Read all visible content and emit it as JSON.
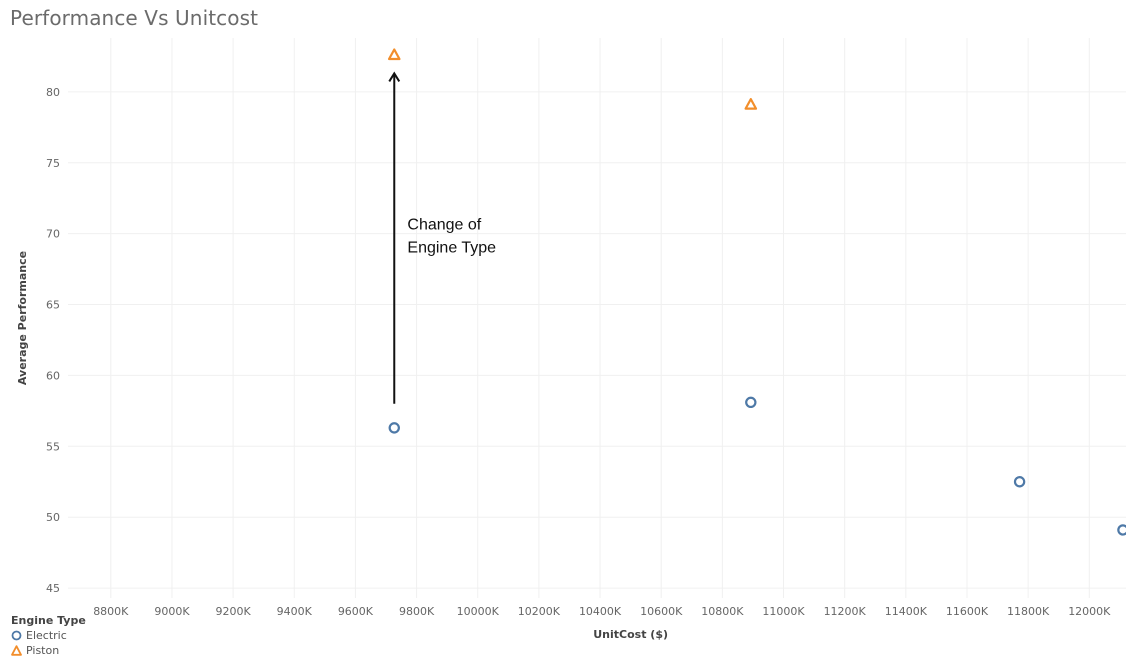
{
  "chart_data": {
    "type": "scatter",
    "title": "Performance Vs Unitcost",
    "xlabel": "UnitCost ($)",
    "ylabel": "Average Performance",
    "xlim": [
      8660,
      12120
    ],
    "ylim": [
      44.3,
      83.8
    ],
    "x_ticks": [
      8800,
      9000,
      9200,
      9400,
      9600,
      9800,
      10000,
      10200,
      10400,
      10600,
      10800,
      11000,
      11200,
      11400,
      11600,
      11800,
      12000
    ],
    "x_tick_labels": [
      "8800K",
      "9000K",
      "9200K",
      "9400K",
      "9600K",
      "9800K",
      "10000K",
      "10200K",
      "10400K",
      "10600K",
      "10800K",
      "11000K",
      "11200K",
      "11400K",
      "11600K",
      "11800K",
      "12000K"
    ],
    "y_ticks": [
      45,
      50,
      55,
      60,
      65,
      70,
      75,
      80
    ],
    "y_tick_labels": [
      "45",
      "50",
      "55",
      "60",
      "65",
      "70",
      "75",
      "80"
    ],
    "grid": true,
    "legend_title": "Engine Type",
    "legend_placement": "bottom-left",
    "series": [
      {
        "name": "Electric",
        "marker": "circle",
        "color": "#4e79a7",
        "points": [
          {
            "x": 9727,
            "y": 56.3
          },
          {
            "x": 10893,
            "y": 58.1
          },
          {
            "x": 11772,
            "y": 52.5
          },
          {
            "x": 12110,
            "y": 49.1
          }
        ]
      },
      {
        "name": "Piston",
        "marker": "triangle",
        "color": "#f28e2b",
        "points": [
          {
            "x": 9727,
            "y": 82.6
          },
          {
            "x": 10893,
            "y": 79.1
          }
        ]
      }
    ],
    "annotation": {
      "lines": [
        "Change of",
        "Engine Type"
      ],
      "arrow_from": {
        "x": 9727,
        "y": 58.0
      },
      "arrow_to": {
        "x": 9727,
        "y": 81.3
      },
      "text_anchor_point": {
        "x": 9770,
        "y": 70.3
      }
    }
  }
}
